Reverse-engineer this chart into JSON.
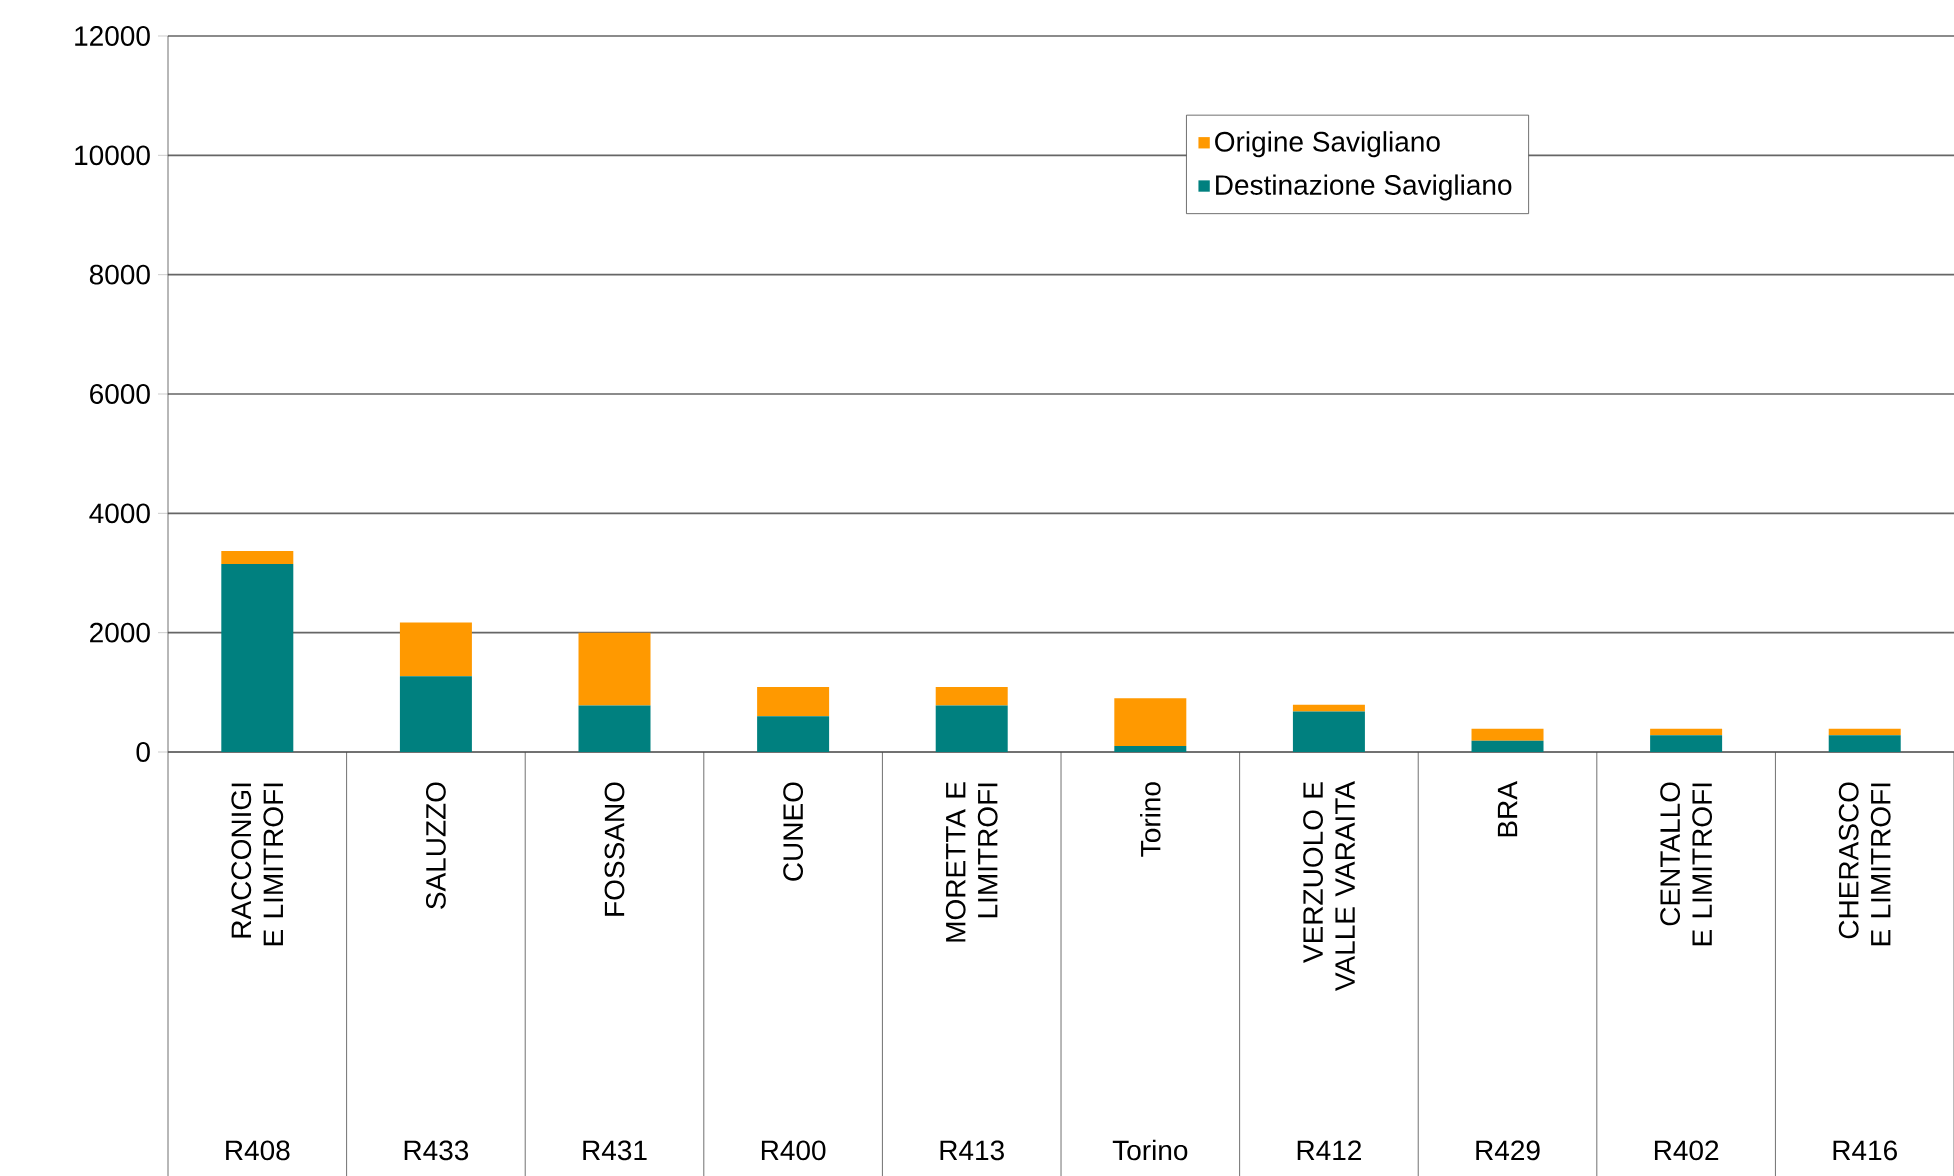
{
  "chart_data": {
    "type": "bar",
    "stacked": true,
    "categories": [
      "RACCONIGI E LIMITROFI",
      "SALUZZO",
      "FOSSANO",
      "CUNEO",
      "MORETTA E LIMITROFI",
      "Torino",
      "VERZUOLO E VALLE VARAITA",
      "BRA",
      "CENTALLO E LIMITROFI",
      "CHERASCO E LIMITROFI"
    ],
    "annotations": [
      "R408",
      "R433",
      "R431",
      "R400",
      "R413",
      "Torino",
      "R412",
      "R429",
      "R402",
      "R416"
    ],
    "series": [
      {
        "name": "Destinazione Savigliano",
        "color": "#00807f",
        "values": [
          3150,
          1270,
          780,
          600,
          780,
          100,
          680,
          190,
          280,
          280
        ]
      },
      {
        "name": "Origine Savigliano",
        "color": "#ff9900",
        "values": [
          220,
          900,
          1220,
          490,
          310,
          800,
          110,
          200,
          110,
          110
        ]
      }
    ],
    "ylim": [
      0,
      12000
    ],
    "yticks": [
      0,
      2000,
      4000,
      6000,
      8000,
      10000,
      12000
    ],
    "grid": "y",
    "legend": "top right"
  }
}
